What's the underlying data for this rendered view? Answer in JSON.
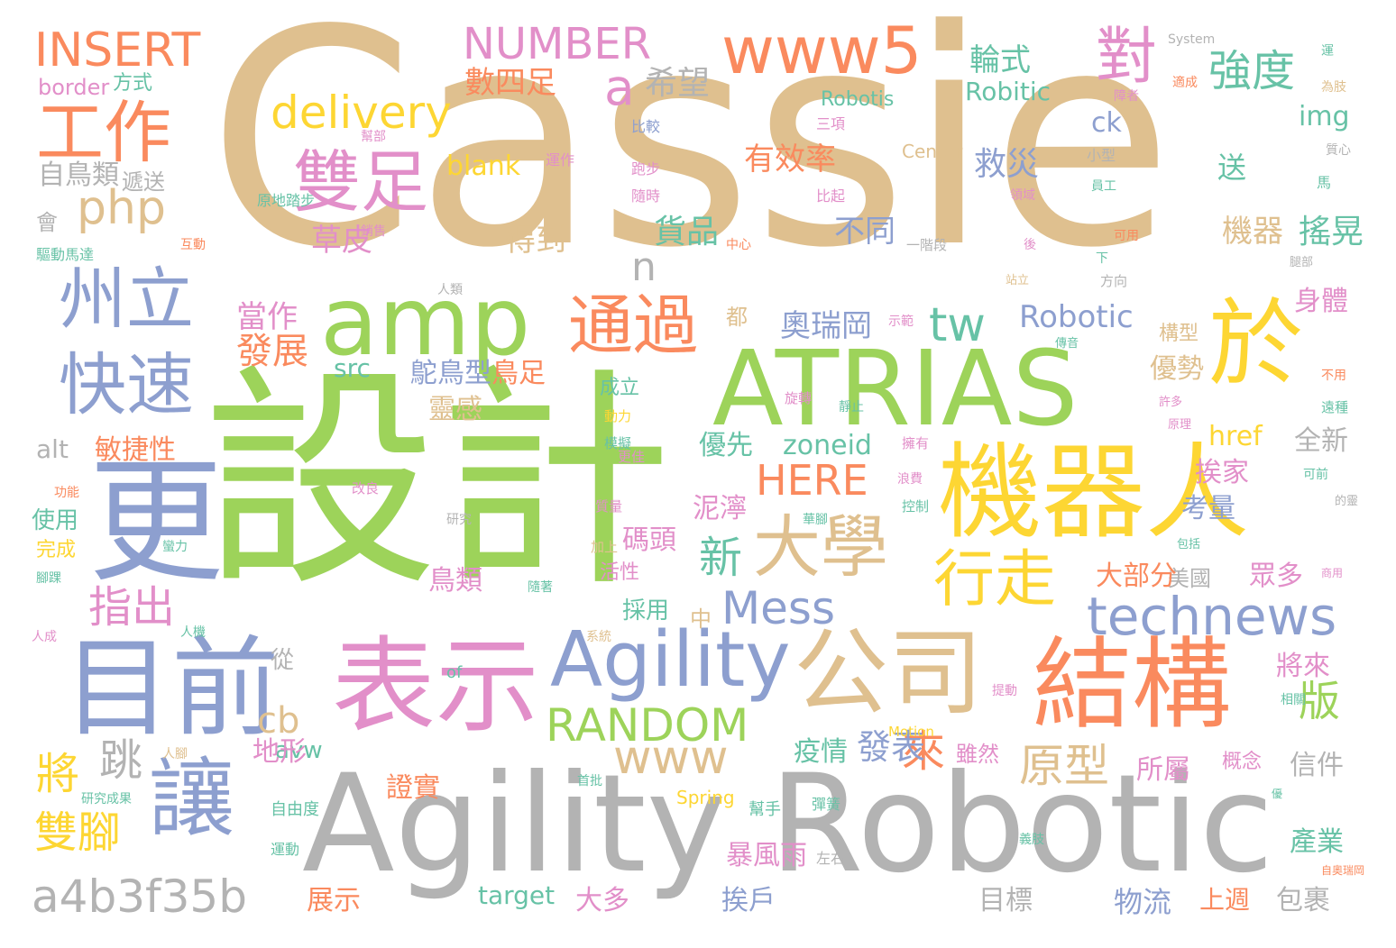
{
  "palette": {
    "tan": "#dfc08f",
    "green": "#9dd35a",
    "gray": "#b3b3b3",
    "blue": "#8d9fcf",
    "pink": "#e28fc9",
    "orange": "#fa8a5e",
    "yellow": "#fdd633",
    "teal": "#67c2a6"
  },
  "words": [
    {
      "text": "Cassie",
      "color": "tan"
    },
    {
      "text": "設計",
      "color": "green"
    },
    {
      "text": "Agility Robotic",
      "color": "gray"
    },
    {
      "text": "ATRIAS",
      "color": "green"
    },
    {
      "text": "機器人",
      "color": "yellow"
    },
    {
      "text": "更",
      "color": "blue"
    },
    {
      "text": "目前",
      "color": "blue"
    },
    {
      "text": "表示",
      "color": "pink"
    },
    {
      "text": "結構",
      "color": "orange"
    },
    {
      "text": "公司",
      "color": "tan"
    },
    {
      "text": "於",
      "color": "yellow"
    },
    {
      "text": "Agility",
      "color": "blue"
    },
    {
      "text": "amp",
      "color": "green"
    },
    {
      "text": "大學",
      "color": "tan"
    },
    {
      "text": "州立",
      "color": "blue"
    },
    {
      "text": "快速",
      "color": "blue"
    },
    {
      "text": "讓",
      "color": "blue"
    },
    {
      "text": "雙足",
      "color": "pink"
    },
    {
      "text": "工作",
      "color": "orange"
    },
    {
      "text": "www5",
      "color": "orange"
    },
    {
      "text": "通過",
      "color": "orange"
    },
    {
      "text": "行走",
      "color": "yellow"
    },
    {
      "text": "technews",
      "color": "blue"
    },
    {
      "text": "對",
      "color": "pink"
    },
    {
      "text": "a4b3f35b",
      "color": "gray"
    },
    {
      "text": "INSERT",
      "color": "orange"
    },
    {
      "text": "NUMBER",
      "color": "pink"
    },
    {
      "text": "delivery",
      "color": "yellow"
    },
    {
      "text": "php",
      "color": "tan"
    },
    {
      "text": "RANDOM",
      "color": "green"
    },
    {
      "text": "Mess",
      "color": "blue"
    },
    {
      "text": "www",
      "color": "tan"
    },
    {
      "text": "HERE",
      "color": "orange"
    },
    {
      "text": "原型",
      "color": "tan"
    },
    {
      "text": "強度",
      "color": "teal"
    },
    {
      "text": "tw",
      "color": "teal"
    },
    {
      "text": "a",
      "color": "pink"
    },
    {
      "text": "n",
      "color": "gray"
    },
    {
      "text": "將",
      "color": "yellow"
    },
    {
      "text": "跳",
      "color": "gray"
    },
    {
      "text": "雙腳",
      "color": "yellow"
    },
    {
      "text": "指出",
      "color": "pink"
    },
    {
      "text": "cb",
      "color": "tan"
    },
    {
      "text": "新",
      "color": "teal"
    },
    {
      "text": "來",
      "color": "orange"
    },
    {
      "text": "版",
      "color": "green"
    },
    {
      "text": "發表",
      "color": "blue"
    },
    {
      "text": "Robotic",
      "color": "blue"
    },
    {
      "text": "奧瑞岡",
      "color": "blue"
    },
    {
      "text": "發展",
      "color": "orange"
    },
    {
      "text": "有效率",
      "color": "orange"
    },
    {
      "text": "機器",
      "color": "tan"
    },
    {
      "text": "搖晃",
      "color": "teal"
    },
    {
      "text": "貨品",
      "color": "teal"
    },
    {
      "text": "不同",
      "color": "blue"
    },
    {
      "text": "救災",
      "color": "blue"
    },
    {
      "text": "得到",
      "color": "tan"
    },
    {
      "text": "草皮",
      "color": "pink"
    },
    {
      "text": "當作",
      "color": "pink"
    },
    {
      "text": "希望",
      "color": "gray"
    },
    {
      "text": "數四足",
      "color": "orange"
    },
    {
      "text": "輪式",
      "color": "teal"
    },
    {
      "text": "Robitic",
      "color": "teal"
    },
    {
      "text": "ck",
      "color": "blue"
    },
    {
      "text": "img",
      "color": "teal"
    },
    {
      "text": "送",
      "color": "teal"
    },
    {
      "text": "blank",
      "color": "yellow"
    },
    {
      "text": "src",
      "color": "teal"
    },
    {
      "text": "zoneid",
      "color": "teal"
    },
    {
      "text": "href",
      "color": "yellow"
    },
    {
      "text": "alt",
      "color": "gray"
    },
    {
      "text": "avw",
      "color": "teal"
    },
    {
      "text": "target",
      "color": "teal"
    },
    {
      "text": "border",
      "color": "pink"
    },
    {
      "text": "方式",
      "color": "teal"
    },
    {
      "text": "自鳥類",
      "color": "gray"
    },
    {
      "text": "遞送",
      "color": "gray"
    },
    {
      "text": "敏捷性",
      "color": "orange"
    },
    {
      "text": "鴕鳥型",
      "color": "blue"
    },
    {
      "text": "鳥足",
      "color": "orange"
    },
    {
      "text": "靈感",
      "color": "tan"
    },
    {
      "text": "優先",
      "color": "teal"
    },
    {
      "text": "泥濘",
      "color": "pink"
    },
    {
      "text": "碼頭",
      "color": "pink"
    },
    {
      "text": "鳥類",
      "color": "pink"
    },
    {
      "text": "疫情",
      "color": "teal"
    },
    {
      "text": "地形",
      "color": "pink"
    },
    {
      "text": "證實",
      "color": "orange"
    },
    {
      "text": "暴風雨",
      "color": "pink"
    },
    {
      "text": "挨戶",
      "color": "blue"
    },
    {
      "text": "大多",
      "color": "pink"
    },
    {
      "text": "展示",
      "color": "orange"
    },
    {
      "text": "目標",
      "color": "gray"
    },
    {
      "text": "物流",
      "color": "blue"
    },
    {
      "text": "上週",
      "color": "orange"
    },
    {
      "text": "包裹",
      "color": "gray"
    },
    {
      "text": "產業",
      "color": "teal"
    },
    {
      "text": "信件",
      "color": "gray"
    },
    {
      "text": "所屬",
      "color": "pink"
    },
    {
      "text": "眾多",
      "color": "pink"
    },
    {
      "text": "美國",
      "color": "gray"
    },
    {
      "text": "大部分",
      "color": "orange"
    },
    {
      "text": "考量",
      "color": "blue"
    },
    {
      "text": "挨家",
      "color": "pink"
    },
    {
      "text": "全新",
      "color": "gray"
    },
    {
      "text": "優勢",
      "color": "tan"
    },
    {
      "text": "身體",
      "color": "pink"
    },
    {
      "text": "將來",
      "color": "pink"
    },
    {
      "text": "使用",
      "color": "teal"
    },
    {
      "text": "完成",
      "color": "yellow"
    },
    {
      "text": "採用",
      "color": "teal"
    },
    {
      "text": "中",
      "color": "tan"
    },
    {
      "text": "從",
      "color": "gray"
    },
    {
      "text": "會",
      "color": "gray"
    },
    {
      "text": "都",
      "color": "tan"
    },
    {
      "text": "成立",
      "color": "teal"
    },
    {
      "text": "活性",
      "color": "pink"
    },
    {
      "text": "雖然",
      "color": "pink"
    },
    {
      "text": "概念",
      "color": "pink"
    },
    {
      "text": "of",
      "color": "teal"
    },
    {
      "text": "Center",
      "color": "tan"
    },
    {
      "text": "Spring",
      "color": "yellow"
    },
    {
      "text": "Motion",
      "color": "yellow"
    },
    {
      "text": "System",
      "color": "gray"
    },
    {
      "text": "Robotis",
      "color": "teal"
    },
    {
      "text": "構型",
      "color": "tan"
    },
    {
      "text": "人腳",
      "color": "tan"
    },
    {
      "text": "研究成果",
      "color": "teal"
    },
    {
      "text": "自由度",
      "color": "teal"
    },
    {
      "text": "運動",
      "color": "teal"
    },
    {
      "text": "彈簧",
      "color": "teal"
    },
    {
      "text": "幫手",
      "color": "teal"
    },
    {
      "text": "左右",
      "color": "gray"
    },
    {
      "text": "比較",
      "color": "blue"
    },
    {
      "text": "運作",
      "color": "pink"
    },
    {
      "text": "跑步",
      "color": "pink"
    },
    {
      "text": "隨時",
      "color": "pink"
    },
    {
      "text": "比起",
      "color": "pink"
    },
    {
      "text": "三項",
      "color": "pink"
    },
    {
      "text": "幫部",
      "color": "pink"
    },
    {
      "text": "原地踏步",
      "color": "teal"
    },
    {
      "text": "銷售",
      "color": "pink"
    },
    {
      "text": "驅動馬達",
      "color": "teal"
    },
    {
      "text": "互動",
      "color": "orange"
    },
    {
      "text": "人類",
      "color": "gray"
    },
    {
      "text": "示範",
      "color": "pink"
    },
    {
      "text": "旋轉",
      "color": "pink"
    },
    {
      "text": "靜止",
      "color": "teal"
    },
    {
      "text": "動力",
      "color": "yellow"
    },
    {
      "text": "模擬",
      "color": "teal"
    },
    {
      "text": "更佳",
      "color": "pink"
    },
    {
      "text": "改良",
      "color": "pink"
    },
    {
      "text": "浪費",
      "color": "pink"
    },
    {
      "text": "擁有",
      "color": "pink"
    },
    {
      "text": "質量",
      "color": "pink"
    },
    {
      "text": "控制",
      "color": "teal"
    },
    {
      "text": "華腳",
      "color": "teal"
    },
    {
      "text": "研究",
      "color": "gray"
    },
    {
      "text": "加上",
      "color": "tan"
    },
    {
      "text": "蠻力",
      "color": "teal"
    },
    {
      "text": "隨著",
      "color": "teal"
    },
    {
      "text": "功能",
      "color": "orange"
    },
    {
      "text": "腳踝",
      "color": "teal"
    },
    {
      "text": "人成",
      "color": "pink"
    },
    {
      "text": "人機",
      "color": "teal"
    },
    {
      "text": "系統",
      "color": "tan"
    },
    {
      "text": "提動",
      "color": "pink"
    },
    {
      "text": "首批",
      "color": "teal"
    },
    {
      "text": "義肢",
      "color": "teal"
    },
    {
      "text": "運",
      "color": "teal"
    },
    {
      "text": "適成",
      "color": "orange"
    },
    {
      "text": "障者",
      "color": "pink"
    },
    {
      "text": "為肢",
      "color": "tan"
    },
    {
      "text": "質心",
      "color": "gray"
    },
    {
      "text": "小型",
      "color": "gray"
    },
    {
      "text": "馬",
      "color": "teal"
    },
    {
      "text": "員工",
      "color": "teal"
    },
    {
      "text": "領域",
      "color": "pink"
    },
    {
      "text": "可用",
      "color": "orange"
    },
    {
      "text": "後",
      "color": "pink"
    },
    {
      "text": "下",
      "color": "teal"
    },
    {
      "text": "腿部",
      "color": "gray"
    },
    {
      "text": "一階段",
      "color": "gray"
    },
    {
      "text": "站立",
      "color": "tan"
    },
    {
      "text": "方向",
      "color": "gray"
    },
    {
      "text": "中心",
      "color": "orange"
    },
    {
      "text": "傳音",
      "color": "teal"
    },
    {
      "text": "不用",
      "color": "orange"
    },
    {
      "text": "許多",
      "color": "pink"
    },
    {
      "text": "遠種",
      "color": "teal"
    },
    {
      "text": "原理",
      "color": "pink"
    },
    {
      "text": "可前",
      "color": "teal"
    },
    {
      "text": "的靈",
      "color": "gray"
    },
    {
      "text": "包括",
      "color": "teal"
    },
    {
      "text": "商用",
      "color": "pink"
    },
    {
      "text": "相關",
      "color": "teal"
    },
    {
      "text": "優",
      "color": "teal"
    },
    {
      "text": "自奧瑞岡",
      "color": "orange"
    },
    {
      "text": "穩定",
      "color": "teal"
    }
  ]
}
